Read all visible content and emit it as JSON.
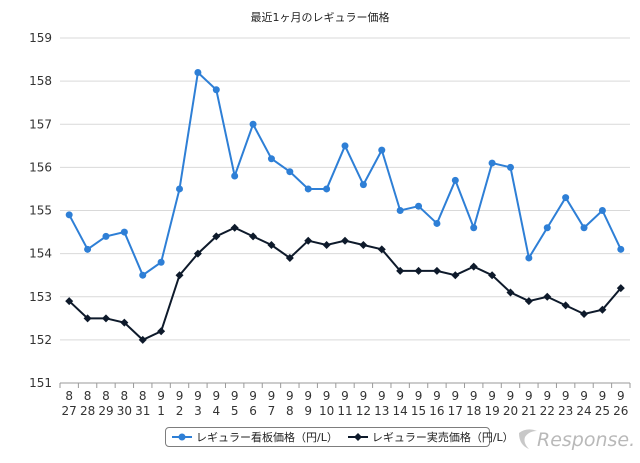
{
  "chart_data": {
    "type": "line",
    "title": "最近1ヶ月のレギュラー価格",
    "categories": [
      [
        "8",
        "27"
      ],
      [
        "8",
        "28"
      ],
      [
        "8",
        "29"
      ],
      [
        "8",
        "30"
      ],
      [
        "8",
        "31"
      ],
      [
        "9",
        "1"
      ],
      [
        "9",
        "2"
      ],
      [
        "9",
        "3"
      ],
      [
        "9",
        "4"
      ],
      [
        "9",
        "5"
      ],
      [
        "9",
        "6"
      ],
      [
        "9",
        "7"
      ],
      [
        "9",
        "8"
      ],
      [
        "9",
        "9"
      ],
      [
        "9",
        "10"
      ],
      [
        "9",
        "11"
      ],
      [
        "9",
        "12"
      ],
      [
        "9",
        "13"
      ],
      [
        "9",
        "14"
      ],
      [
        "9",
        "15"
      ],
      [
        "9",
        "16"
      ],
      [
        "9",
        "17"
      ],
      [
        "9",
        "18"
      ],
      [
        "9",
        "19"
      ],
      [
        "9",
        "20"
      ],
      [
        "9",
        "21"
      ],
      [
        "9",
        "22"
      ],
      [
        "9",
        "23"
      ],
      [
        "9",
        "24"
      ],
      [
        "9",
        "25"
      ],
      [
        "9",
        "26"
      ]
    ],
    "series": [
      {
        "name": "レギュラー看板価格（円/L）",
        "color": "#2e7fd6",
        "marker": "circle",
        "values": [
          154.9,
          154.1,
          154.4,
          154.5,
          153.5,
          153.8,
          155.5,
          158.2,
          157.8,
          155.8,
          157.0,
          156.2,
          155.9,
          155.5,
          155.5,
          156.5,
          155.6,
          156.4,
          155.0,
          155.1,
          154.7,
          155.7,
          154.6,
          156.1,
          156.0,
          153.9,
          154.6,
          155.3,
          154.6,
          155.0,
          154.1
        ]
      },
      {
        "name": "レギュラー実売価格（円/L）",
        "color": "#0e1a2b",
        "marker": "diamond",
        "values": [
          152.9,
          152.5,
          152.5,
          152.4,
          152.0,
          152.2,
          153.5,
          154.0,
          154.4,
          154.6,
          154.4,
          154.2,
          153.9,
          154.3,
          154.2,
          154.3,
          154.2,
          154.1,
          153.6,
          153.6,
          153.6,
          153.5,
          153.7,
          153.5,
          153.1,
          152.9,
          153.0,
          152.8,
          152.6,
          152.7,
          153.2
        ]
      }
    ],
    "yticks": [
      151,
      152,
      153,
      154,
      155,
      156,
      157,
      158,
      159
    ],
    "ylim": [
      151,
      159
    ],
    "grid": true,
    "legend_position": "bottom"
  },
  "watermark": {
    "text": "Response."
  }
}
